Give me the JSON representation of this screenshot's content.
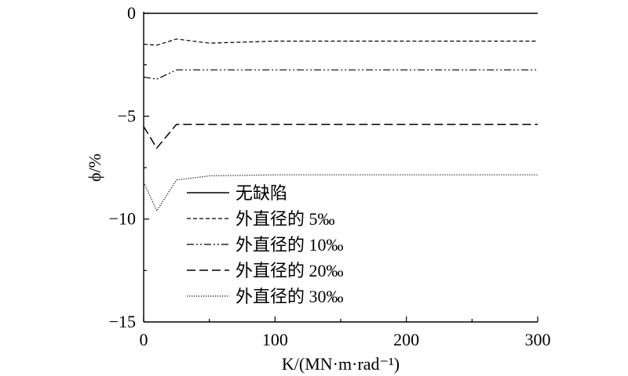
{
  "chart_data": {
    "type": "line",
    "title": "",
    "xlabel": "K/(MN·m·rad⁻¹)",
    "ylabel": "ϕ/%",
    "xlim": [
      0,
      300
    ],
    "ylim": [
      -15,
      0
    ],
    "xticks": [
      0,
      100,
      200,
      300
    ],
    "yticks": [
      0,
      -5,
      -10,
      -15
    ],
    "xtick_labels": [
      "0",
      "100",
      "200",
      "300"
    ],
    "ytick_labels": [
      "0",
      "−5",
      "−10",
      "−15"
    ],
    "grid": false,
    "legend_position": "bottom-left",
    "series": [
      {
        "name": "无缺陷",
        "style": "solid",
        "x": [
          0,
          10,
          25,
          50,
          100,
          150,
          200,
          250,
          300
        ],
        "y": [
          0,
          0,
          0,
          0,
          0,
          0,
          0,
          0,
          0
        ]
      },
      {
        "name": "外直径的 5‰",
        "style": "short-dash",
        "x": [
          0,
          10,
          25,
          50,
          100,
          150,
          200,
          250,
          300
        ],
        "y": [
          -1.5,
          -1.55,
          -1.25,
          -1.45,
          -1.35,
          -1.35,
          -1.35,
          -1.35,
          -1.35
        ]
      },
      {
        "name": "外直径的 10‰",
        "style": "dash-dot-dot",
        "x": [
          0,
          10,
          25,
          50,
          100,
          150,
          200,
          250,
          300
        ],
        "y": [
          -3.1,
          -3.2,
          -2.75,
          -2.75,
          -2.75,
          -2.75,
          -2.75,
          -2.75,
          -2.75
        ]
      },
      {
        "name": "外直径的 20‰",
        "style": "long-dash",
        "x": [
          0,
          10,
          25,
          50,
          100,
          150,
          200,
          250,
          300
        ],
        "y": [
          -5.5,
          -6.55,
          -5.4,
          -5.4,
          -5.4,
          -5.4,
          -5.4,
          -5.4,
          -5.4
        ]
      },
      {
        "name": "外直径的 30‰",
        "style": "dotted",
        "x": [
          0,
          10,
          25,
          50,
          100,
          150,
          200,
          250,
          300
        ],
        "y": [
          -8.2,
          -9.6,
          -8.1,
          -7.9,
          -7.85,
          -7.85,
          -7.85,
          -7.85,
          -7.85
        ]
      }
    ]
  }
}
